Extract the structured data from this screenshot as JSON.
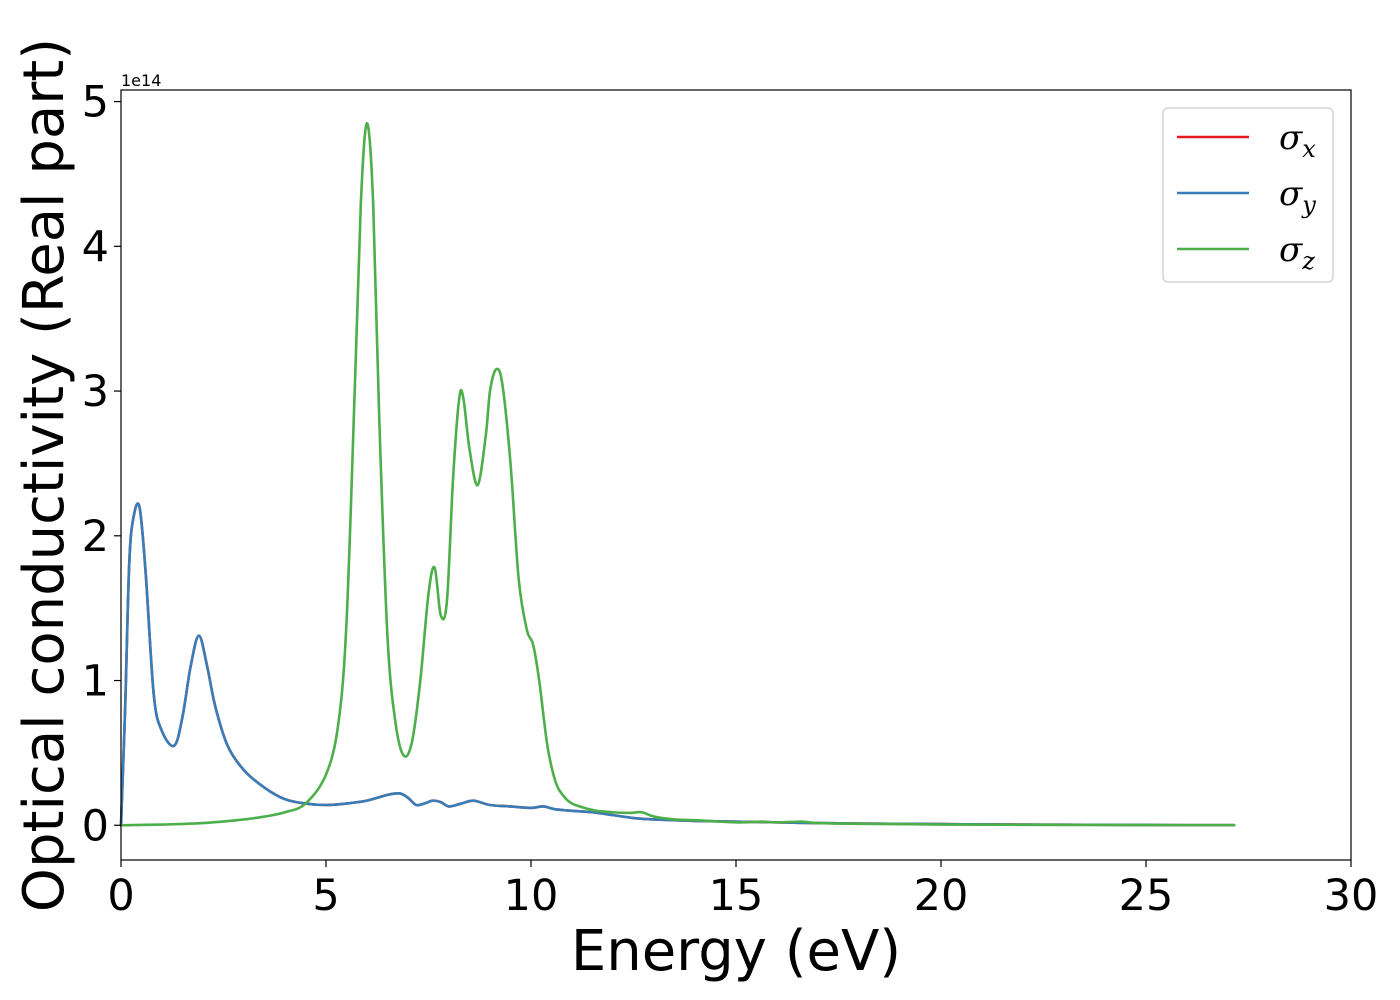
{
  "chart_data": {
    "type": "line",
    "title": "",
    "xlabel": "Energy (eV)",
    "ylabel": "Optical conductivity (Real part)",
    "y_offset_label": "1e14",
    "xlim": [
      0,
      30
    ],
    "ylim": [
      -0.24,
      5.08
    ],
    "xticks": [
      0,
      5,
      10,
      15,
      20,
      25,
      30
    ],
    "yticks": [
      0,
      1,
      2,
      3,
      4,
      5
    ],
    "xtick_labels": [
      "0",
      "5",
      "10",
      "15",
      "20",
      "25",
      "30"
    ],
    "ytick_labels": [
      "0",
      "1",
      "2",
      "3",
      "4",
      "5"
    ],
    "grid": false,
    "legend_position": "top-right",
    "series": [
      {
        "name": "σx",
        "legend_symbol": "σ",
        "legend_sub": "x",
        "color": "#e41a1c",
        "x": [
          0,
          0.1,
          0.2,
          0.3,
          0.45,
          0.6,
          0.8,
          1.0,
          1.3,
          1.5,
          1.7,
          1.9,
          2.1,
          2.3,
          2.6,
          3.0,
          3.5,
          4.0,
          4.5,
          5.0,
          5.5,
          6.0,
          6.5,
          6.8,
          7.0,
          7.2,
          7.4,
          7.6,
          7.8,
          8.0,
          8.3,
          8.6,
          9.0,
          9.5,
          10.0,
          10.3,
          10.6,
          11.0,
          11.5,
          12.0,
          12.5,
          13.0,
          14.0,
          15.0,
          16.0,
          17.0,
          18.0,
          19.0,
          20.0,
          21.0,
          22.0,
          23.0,
          24.0,
          25.0,
          26.0,
          27.15
        ],
        "values": [
          0,
          0.8,
          1.8,
          2.12,
          2.2,
          1.75,
          0.9,
          0.65,
          0.55,
          0.75,
          1.1,
          1.31,
          1.1,
          0.82,
          0.55,
          0.38,
          0.26,
          0.18,
          0.15,
          0.14,
          0.15,
          0.17,
          0.21,
          0.22,
          0.19,
          0.14,
          0.15,
          0.17,
          0.16,
          0.13,
          0.15,
          0.17,
          0.14,
          0.13,
          0.12,
          0.13,
          0.11,
          0.1,
          0.09,
          0.07,
          0.05,
          0.04,
          0.03,
          0.025,
          0.02,
          0.015,
          0.012,
          0.01,
          0.008,
          0.006,
          0.005,
          0.004,
          0.003,
          0.002,
          0.001,
          0.001
        ]
      },
      {
        "name": "σy",
        "legend_symbol": "σ",
        "legend_sub": "y",
        "color": "#377eb8",
        "x": [
          0,
          0.1,
          0.2,
          0.3,
          0.45,
          0.6,
          0.8,
          1.0,
          1.3,
          1.5,
          1.7,
          1.9,
          2.1,
          2.3,
          2.6,
          3.0,
          3.5,
          4.0,
          4.5,
          5.0,
          5.5,
          6.0,
          6.5,
          6.8,
          7.0,
          7.2,
          7.4,
          7.6,
          7.8,
          8.0,
          8.3,
          8.6,
          9.0,
          9.5,
          10.0,
          10.3,
          10.6,
          11.0,
          11.5,
          12.0,
          12.5,
          13.0,
          14.0,
          15.0,
          16.0,
          17.0,
          18.0,
          19.0,
          20.0,
          21.0,
          22.0,
          23.0,
          24.0,
          25.0,
          26.0,
          27.15
        ],
        "values": [
          0,
          0.8,
          1.8,
          2.12,
          2.2,
          1.75,
          0.9,
          0.65,
          0.55,
          0.75,
          1.1,
          1.31,
          1.1,
          0.82,
          0.55,
          0.38,
          0.26,
          0.18,
          0.15,
          0.14,
          0.15,
          0.17,
          0.21,
          0.22,
          0.19,
          0.14,
          0.15,
          0.17,
          0.16,
          0.13,
          0.15,
          0.17,
          0.14,
          0.13,
          0.12,
          0.13,
          0.11,
          0.1,
          0.09,
          0.07,
          0.05,
          0.04,
          0.03,
          0.025,
          0.02,
          0.015,
          0.012,
          0.01,
          0.008,
          0.006,
          0.005,
          0.004,
          0.003,
          0.002,
          0.001,
          0.001
        ]
      },
      {
        "name": "σz",
        "legend_symbol": "σ",
        "legend_sub": "z",
        "color": "#4daf4a",
        "x": [
          0,
          1,
          2,
          3,
          3.5,
          4,
          4.5,
          5.0,
          5.3,
          5.5,
          5.7,
          5.85,
          6.0,
          6.15,
          6.3,
          6.5,
          6.7,
          6.9,
          7.1,
          7.3,
          7.5,
          7.65,
          7.8,
          7.95,
          8.1,
          8.25,
          8.35,
          8.5,
          8.7,
          8.9,
          9.0,
          9.15,
          9.3,
          9.5,
          9.7,
          9.9,
          10.05,
          10.2,
          10.4,
          10.6,
          10.8,
          11.0,
          11.3,
          11.6,
          12.0,
          12.4,
          12.7,
          13.0,
          13.5,
          14.0,
          15.0,
          15.6,
          16.0,
          16.6,
          17.0,
          18.0,
          19.0,
          20.0,
          22.0,
          24.0,
          26.0,
          27.15
        ],
        "values": [
          0,
          0.005,
          0.015,
          0.04,
          0.06,
          0.09,
          0.15,
          0.35,
          0.7,
          1.4,
          3.0,
          4.3,
          4.85,
          4.3,
          2.8,
          1.3,
          0.7,
          0.48,
          0.58,
          1.0,
          1.6,
          1.78,
          1.45,
          1.55,
          2.4,
          2.95,
          2.95,
          2.6,
          2.35,
          2.7,
          3.0,
          3.15,
          3.05,
          2.5,
          1.7,
          1.35,
          1.25,
          1.0,
          0.55,
          0.3,
          0.2,
          0.15,
          0.12,
          0.1,
          0.09,
          0.085,
          0.09,
          0.06,
          0.04,
          0.035,
          0.02,
          0.025,
          0.02,
          0.025,
          0.015,
          0.01,
          0.008,
          0.005,
          0.003,
          0.002,
          0.001,
          0.001
        ]
      }
    ]
  }
}
